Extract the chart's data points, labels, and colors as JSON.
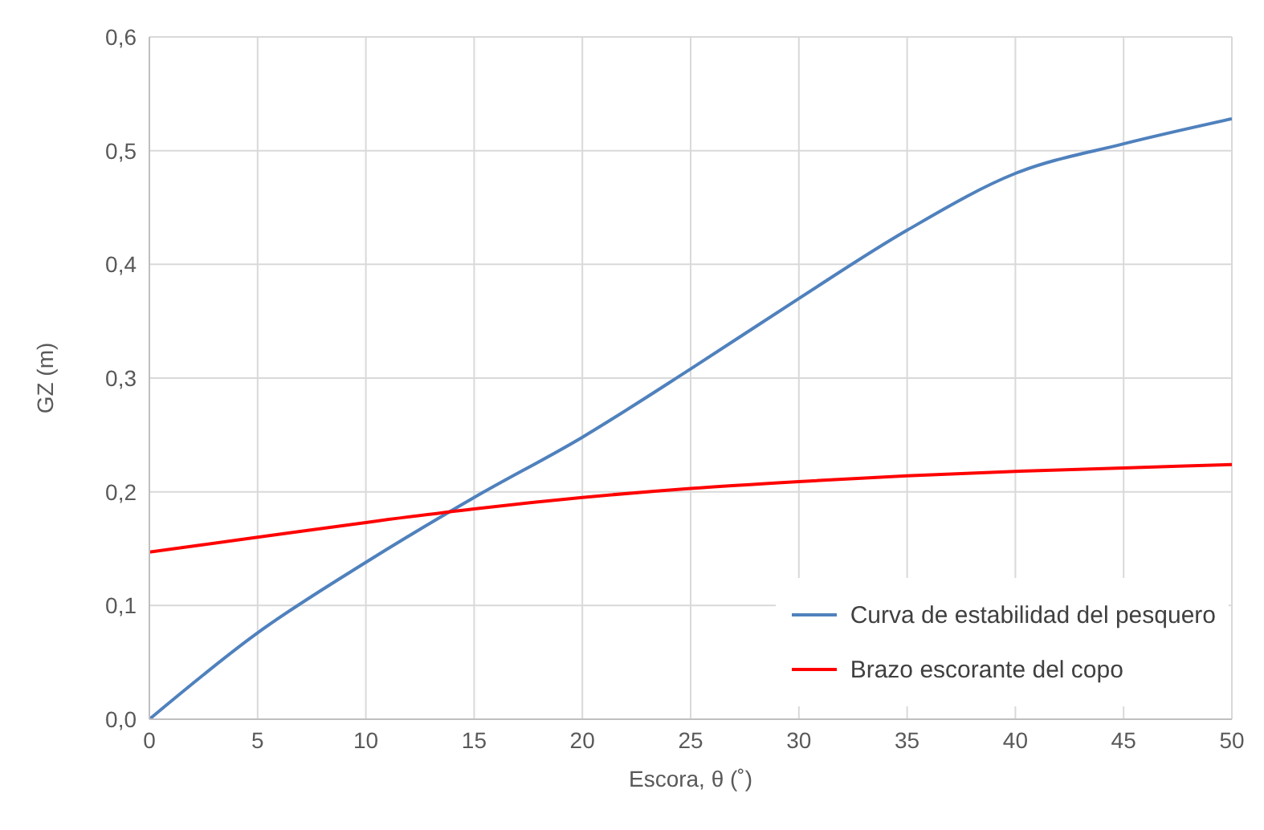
{
  "chart_data": {
    "type": "line",
    "xlabel": "Escora, θ (˚)",
    "ylabel": "GZ (m)",
    "x": [
      0,
      5,
      10,
      15,
      20,
      25,
      30,
      35,
      40,
      45,
      50
    ],
    "series": [
      {
        "name": "Curva de estabilidad del pesquero",
        "color": "#4f81bd",
        "values": [
          0,
          0.076,
          0.138,
          0.195,
          0.248,
          0.308,
          0.37,
          0.43,
          0.48,
          0.506,
          0.528
        ]
      },
      {
        "name": "Brazo escorante del copo",
        "color": "#ff0000",
        "values": [
          0.147,
          0.16,
          0.173,
          0.185,
          0.195,
          0.203,
          0.209,
          0.214,
          0.218,
          0.221,
          0.224
        ]
      }
    ],
    "xlim": [
      0,
      50
    ],
    "xticks": [
      0,
      5,
      10,
      15,
      20,
      25,
      30,
      35,
      40,
      45,
      50
    ],
    "ylim": [
      0,
      0.6
    ],
    "yticks": [
      {
        "value": 0,
        "label": "0,0"
      },
      {
        "value": 0.1,
        "label": "0,1"
      },
      {
        "value": 0.2,
        "label": "0,2"
      },
      {
        "value": 0.3,
        "label": "0,3"
      },
      {
        "value": 0.4,
        "label": "0,4"
      },
      {
        "value": 0.5,
        "label": "0,5"
      },
      {
        "value": 0.6,
        "label": "0,6"
      }
    ],
    "grid": true,
    "legend": "bottom right",
    "marker": "none",
    "line_style": "solid"
  }
}
